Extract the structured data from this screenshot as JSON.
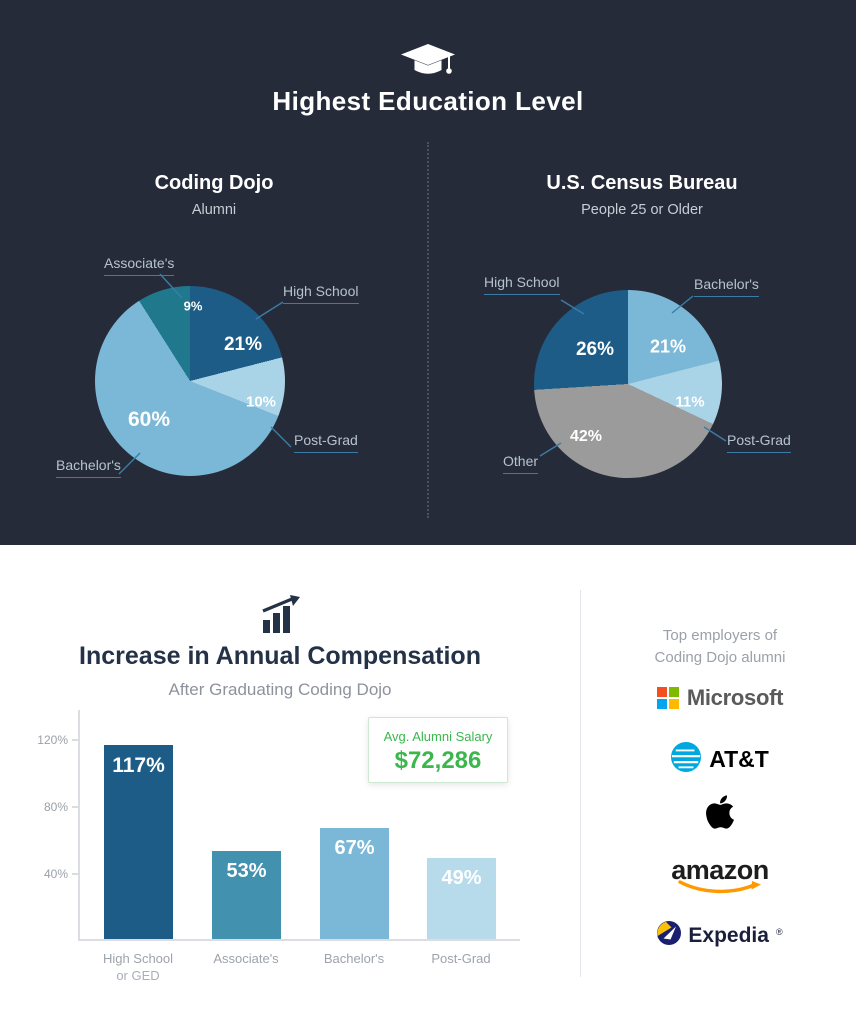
{
  "top_section": {
    "title": "Highest Education Level",
    "icon": "graduation-cap"
  },
  "colors": {
    "dark_background": "#262b3a",
    "accent_green": "#3cb64d",
    "callout_line": "#3b7ca6",
    "heading_navy": "#243247"
  },
  "chart_data": [
    {
      "type": "pie",
      "title": "Coding Dojo",
      "subtitle": "Alumni",
      "legend_position": "callout-labels",
      "start_angle_deg": 0,
      "slices": [
        {
          "label": "High School",
          "value": 21,
          "display": "21%",
          "color": "#1d5c86"
        },
        {
          "label": "Post-Grad",
          "value": 10,
          "display": "10%",
          "color": "#a9d3e7"
        },
        {
          "label": "Bachelor's",
          "value": 60,
          "display": "60%",
          "color": "#7bb8d8"
        },
        {
          "label": "Associate's",
          "value": 9,
          "display": "9%",
          "color": "#20788d"
        }
      ]
    },
    {
      "type": "pie",
      "title": "U.S. Census Bureau",
      "subtitle": "People 25 or Older",
      "legend_position": "callout-labels",
      "start_angle_deg": 0,
      "slices": [
        {
          "label": "Bachelor's",
          "value": 21,
          "display": "21%",
          "color": "#7bb8d8"
        },
        {
          "label": "Post-Grad",
          "value": 11,
          "display": "11%",
          "color": "#a9d3e7"
        },
        {
          "label": "Other",
          "value": 42,
          "display": "42%",
          "color": "#9b9b9b"
        },
        {
          "label": "High School",
          "value": 26,
          "display": "26%",
          "color": "#1d5c86"
        }
      ]
    },
    {
      "type": "bar",
      "title": "Increase in Annual Compensation",
      "subtitle": "After Graduating Coding Dojo",
      "categories": [
        [
          "High School",
          "or GED"
        ],
        [
          "Associate's"
        ],
        [
          "Bachelor's"
        ],
        [
          "Post-Grad"
        ]
      ],
      "values": [
        117,
        53,
        67,
        49
      ],
      "displays": [
        "117%",
        "53%",
        "67%",
        "49%"
      ],
      "colors": [
        "#1d5c86",
        "#4292af",
        "#7bb8d8",
        "#b7dbeb"
      ],
      "y_ticks": [
        "120%",
        "80%",
        "40%"
      ],
      "ylim": [
        0,
        138
      ],
      "grid": false,
      "annotation": {
        "label": "Avg. Alumni Salary",
        "value": "$72,286"
      }
    }
  ],
  "bottom_section": {
    "icon": "rising-bar-chart",
    "employers": {
      "heading_line1": "Top employers of",
      "heading_line2": "Coding Dojo alumni",
      "items": [
        {
          "name": "Microsoft",
          "brand_colors": [
            "#f25022",
            "#7fba00",
            "#00a4ef",
            "#ffb900"
          ],
          "text_color": "#5a5a5a"
        },
        {
          "name": "AT&T",
          "brand_color": "#00a8e0",
          "text_color": "#000000"
        },
        {
          "name": "Apple",
          "brand_color": "#000000"
        },
        {
          "name": "amazon",
          "brand_color": "#ff9900",
          "text_color": "#1d1d1d"
        },
        {
          "name": "Expedia",
          "brand_color": "#1a1f71",
          "accent_color": "#fbc108",
          "text_color": "#1a1f3b",
          "registered_mark": "®"
        }
      ]
    }
  }
}
